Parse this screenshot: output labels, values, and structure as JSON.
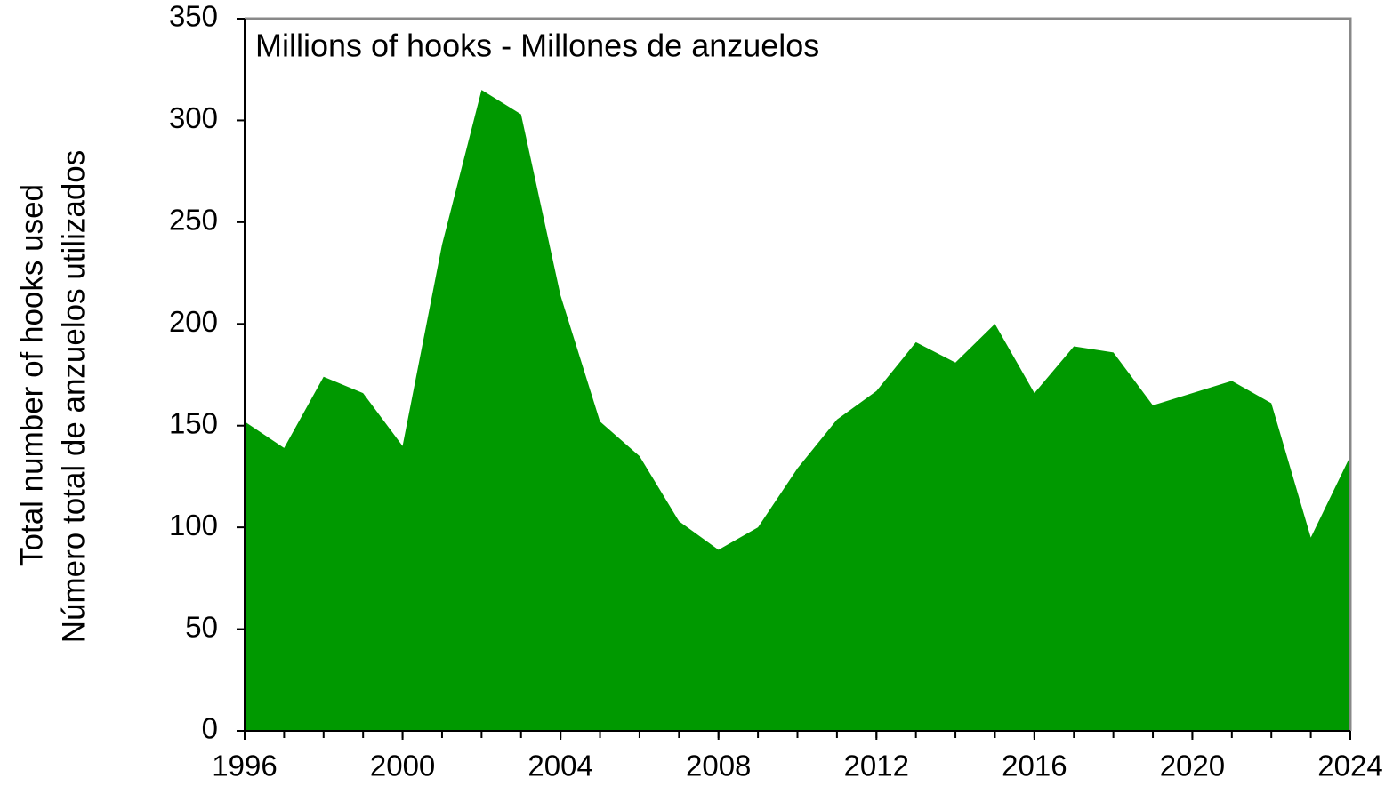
{
  "chart_data": {
    "type": "area",
    "title": "Millions of hooks - Millones de anzuelos",
    "ylabel": [
      "Total number of hooks used",
      "Número total de anzuelos utilizados"
    ],
    "x": [
      1996,
      1997,
      1998,
      1999,
      2000,
      2001,
      2002,
      2003,
      2004,
      2005,
      2006,
      2007,
      2008,
      2009,
      2010,
      2011,
      2012,
      2013,
      2014,
      2015,
      2016,
      2017,
      2018,
      2019,
      2020,
      2021,
      2022,
      2023,
      2024
    ],
    "values": [
      152,
      139,
      174,
      166,
      140,
      239,
      315,
      303,
      214,
      152,
      135,
      103,
      89,
      100,
      129,
      153,
      167,
      191,
      181,
      200,
      166,
      189,
      186,
      160,
      166,
      172,
      161,
      95,
      135
    ],
    "color": "#009900",
    "xlim": [
      1996,
      2024
    ],
    "xticks": [
      1996,
      2000,
      2004,
      2008,
      2012,
      2016,
      2020,
      2024
    ],
    "ylim": [
      0,
      350
    ],
    "yticks": [
      0,
      50,
      100,
      150,
      200,
      250,
      300,
      350
    ],
    "grid": false
  }
}
